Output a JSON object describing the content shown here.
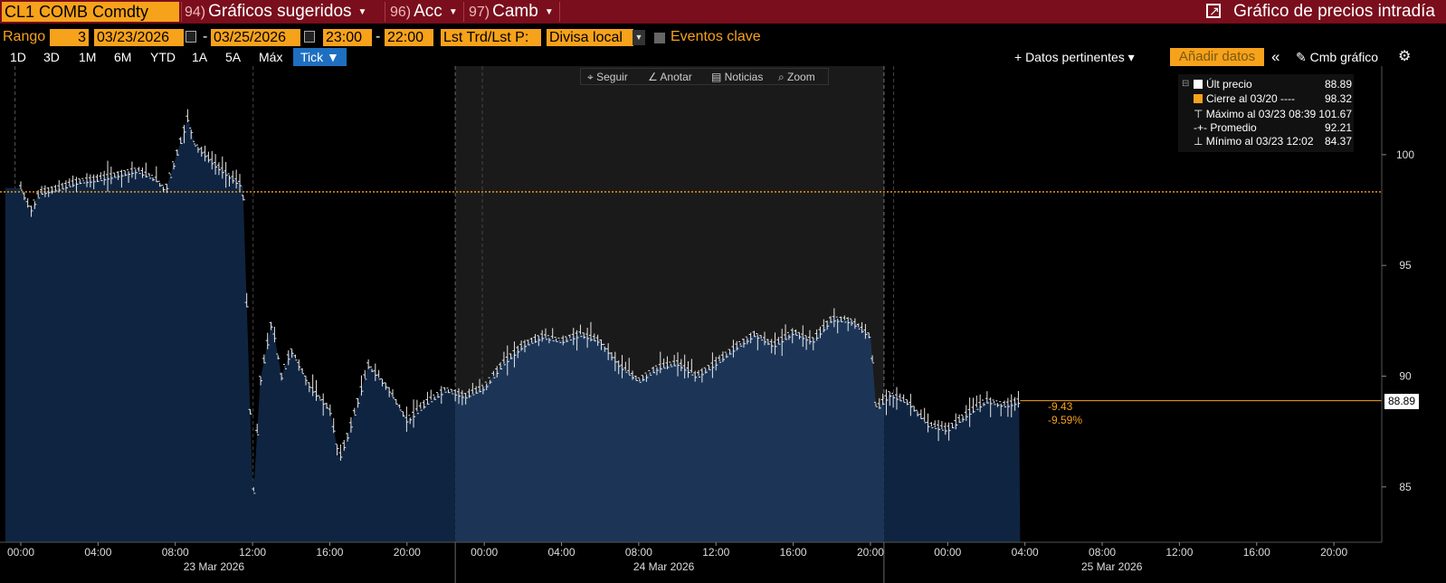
{
  "header": {
    "ticker": "CL1 COMB Comdty",
    "menus": [
      {
        "num": "94)",
        "label": "Gráficos sugeridos"
      },
      {
        "num": "96)",
        "label": "Acc"
      },
      {
        "num": "97)",
        "label": "Camb"
      }
    ],
    "title": "Gráfico de precios intradía"
  },
  "controls": {
    "range_label": "Rango",
    "range_value": "3",
    "start_date": "03/23/2026",
    "date_sep": "-",
    "end_date": "03/25/2026",
    "start_time": "23:00",
    "time_sep": "-",
    "end_time": "22:00",
    "trade_type": "Lst Trd/Lst P:",
    "currency": "Divisa local",
    "key_events": "Eventos clave"
  },
  "periods": [
    "1D",
    "3D",
    "1M",
    "6M",
    "YTD",
    "1A",
    "5A",
    "Máx"
  ],
  "active_period": "Tick ▼",
  "right_tools": {
    "related": "+ Datos pertinentes ▾",
    "add_data": "Añadir datos",
    "collapse": "«",
    "change_chart": "✎ Cmb gráfico",
    "settings": "⚙"
  },
  "chart_tools": {
    "follow": "⌖ Seguir",
    "annotate": "∠ Anotar",
    "news": "▤ Noticias",
    "zoom": "⌕ Zoom"
  },
  "legend": [
    {
      "label": "Últ precio",
      "value": "88.89",
      "color": "#ffffff"
    },
    {
      "label": "Cierre al 03/20 ----",
      "value": "98.32",
      "color": "#f7a21b"
    },
    {
      "label": "⊤ Máximo al 03/23 08:39",
      "value": "101.67"
    },
    {
      "label": "-+- Promedio",
      "value": "92.21"
    },
    {
      "label": "⊥ Mínimo al 03/23 12:02",
      "value": "84.37"
    }
  ],
  "change": {
    "abs": "-9.43",
    "pct": "-9.59%"
  },
  "last_price_badge": "88.89",
  "colors": {
    "accent": "#f7a21b",
    "area_day": "#0f2440",
    "area_highlight": "#1c3556",
    "close_line": "#f7a21b",
    "title_bar": "#7a0e1c"
  },
  "chart_data": {
    "type": "line",
    "y_ticks": [
      "85",
      "90",
      "95",
      "100"
    ],
    "ylim": [
      82.5,
      104
    ],
    "x_ticks": [
      "00:00",
      "04:00",
      "08:00",
      "12:00",
      "16:00",
      "20:00",
      "00:00",
      "04:00",
      "08:00",
      "12:00",
      "16:00",
      "20:00",
      "00:00",
      "04:00",
      "08:00",
      "12:00",
      "16:00",
      "20:00"
    ],
    "day_labels": [
      "23 Mar 2026",
      "24 Mar 2026",
      "25 Mar 2026"
    ],
    "previous_close": 98.32,
    "last": 88.89,
    "series": [
      {
        "values": [
          [
            0,
            98.5
          ],
          [
            0.5,
            97.5
          ],
          [
            1,
            98.3
          ],
          [
            2,
            98.5
          ],
          [
            3,
            98.8
          ],
          [
            4,
            98.9
          ],
          [
            5,
            99.1
          ],
          [
            6,
            99.3
          ],
          [
            7,
            98.9
          ],
          [
            7.5,
            98.4
          ],
          [
            8,
            99.8
          ],
          [
            8.65,
            101.67
          ],
          [
            9,
            100.5
          ],
          [
            10,
            99.6
          ],
          [
            11,
            98.9
          ],
          [
            11.5,
            98.6
          ],
          [
            12.03,
            84.37
          ],
          [
            12.4,
            89.8
          ],
          [
            13,
            92.5
          ],
          [
            13.5,
            90.0
          ],
          [
            14,
            91.2
          ],
          [
            15,
            89.5
          ],
          [
            16,
            88.5
          ],
          [
            16.5,
            86.3
          ],
          [
            17,
            87.5
          ],
          [
            18,
            90.5
          ],
          [
            19,
            89.5
          ],
          [
            20,
            88.0
          ],
          [
            21,
            88.8
          ],
          [
            22,
            89.4
          ],
          [
            23,
            89.1
          ],
          [
            24,
            89.5
          ],
          [
            25,
            90.6
          ],
          [
            26,
            91.4
          ],
          [
            27,
            91.8
          ],
          [
            28,
            91.6
          ],
          [
            29,
            91.9
          ],
          [
            30,
            91.6
          ],
          [
            31,
            90.5
          ],
          [
            32,
            89.8
          ],
          [
            33,
            90.4
          ],
          [
            34,
            90.6
          ],
          [
            35,
            90.0
          ],
          [
            36,
            90.6
          ],
          [
            37,
            91.3
          ],
          [
            38,
            91.9
          ],
          [
            39,
            91.4
          ],
          [
            40,
            92.0
          ],
          [
            41,
            91.6
          ],
          [
            42,
            92.6
          ],
          [
            43,
            92.5
          ],
          [
            44,
            91.8
          ],
          [
            44.3,
            88.5
          ],
          [
            45,
            89.2
          ],
          [
            46,
            88.8
          ],
          [
            47,
            87.8
          ],
          [
            48,
            87.6
          ],
          [
            49,
            88.3
          ],
          [
            50,
            88.9
          ],
          [
            51,
            88.7
          ],
          [
            51.75,
            88.89
          ]
        ]
      }
    ]
  }
}
